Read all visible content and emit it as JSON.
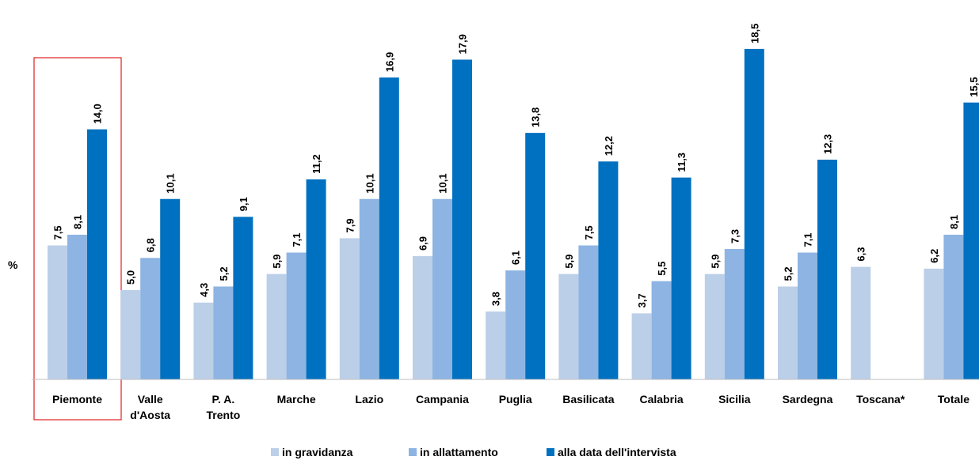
{
  "chart_data": {
    "type": "bar",
    "ylabel": "%",
    "ylim": [
      0,
      20
    ],
    "categories": [
      [
        "Piemonte"
      ],
      [
        "Valle",
        "d'Aosta"
      ],
      [
        "P. A.",
        "Trento"
      ],
      [
        "Marche"
      ],
      [
        "Lazio"
      ],
      [
        "Campania"
      ],
      [
        "Puglia"
      ],
      [
        "Basilicata"
      ],
      [
        "Calabria"
      ],
      [
        "Sicilia"
      ],
      [
        "Sardegna"
      ],
      [
        "Toscana*"
      ],
      [
        "Totale"
      ]
    ],
    "highlighted_category": "Piemonte",
    "legend_position": "bottom",
    "series": [
      {
        "name": "in gravidanza",
        "color": "#bccfe8",
        "values": [
          7.5,
          5.0,
          4.3,
          5.9,
          7.9,
          6.9,
          3.8,
          5.9,
          3.7,
          5.9,
          5.2,
          6.3,
          6.2
        ],
        "labels": [
          "7,5",
          "5,0",
          "4,3",
          "5,9",
          "7,9",
          "6,9",
          "3,8",
          "5,9",
          "3,7",
          "5,9",
          "5,2",
          "6,3",
          "6,2"
        ]
      },
      {
        "name": "in allattamento",
        "color": "#8db4e2",
        "values": [
          8.1,
          6.8,
          5.2,
          7.1,
          10.1,
          10.1,
          6.1,
          7.5,
          5.5,
          7.3,
          7.1,
          null,
          8.1
        ],
        "labels": [
          "8,1",
          "6,8",
          "5,2",
          "7,1",
          "10,1",
          "10,1",
          "6,1",
          "7,5",
          "5,5",
          "7,3",
          "7,1",
          null,
          "8,1"
        ]
      },
      {
        "name": "alla data dell'intervista",
        "color": "#0070c0",
        "values": [
          14.0,
          10.1,
          9.1,
          11.2,
          16.9,
          17.9,
          13.8,
          12.2,
          11.3,
          18.5,
          12.3,
          null,
          15.5
        ],
        "labels": [
          "14,0",
          "10,1",
          "9,1",
          "11,2",
          "16,9",
          "17,9",
          "13,8",
          "12,2",
          "11,3",
          "18,5",
          "12,3",
          null,
          "15,5"
        ]
      }
    ]
  }
}
